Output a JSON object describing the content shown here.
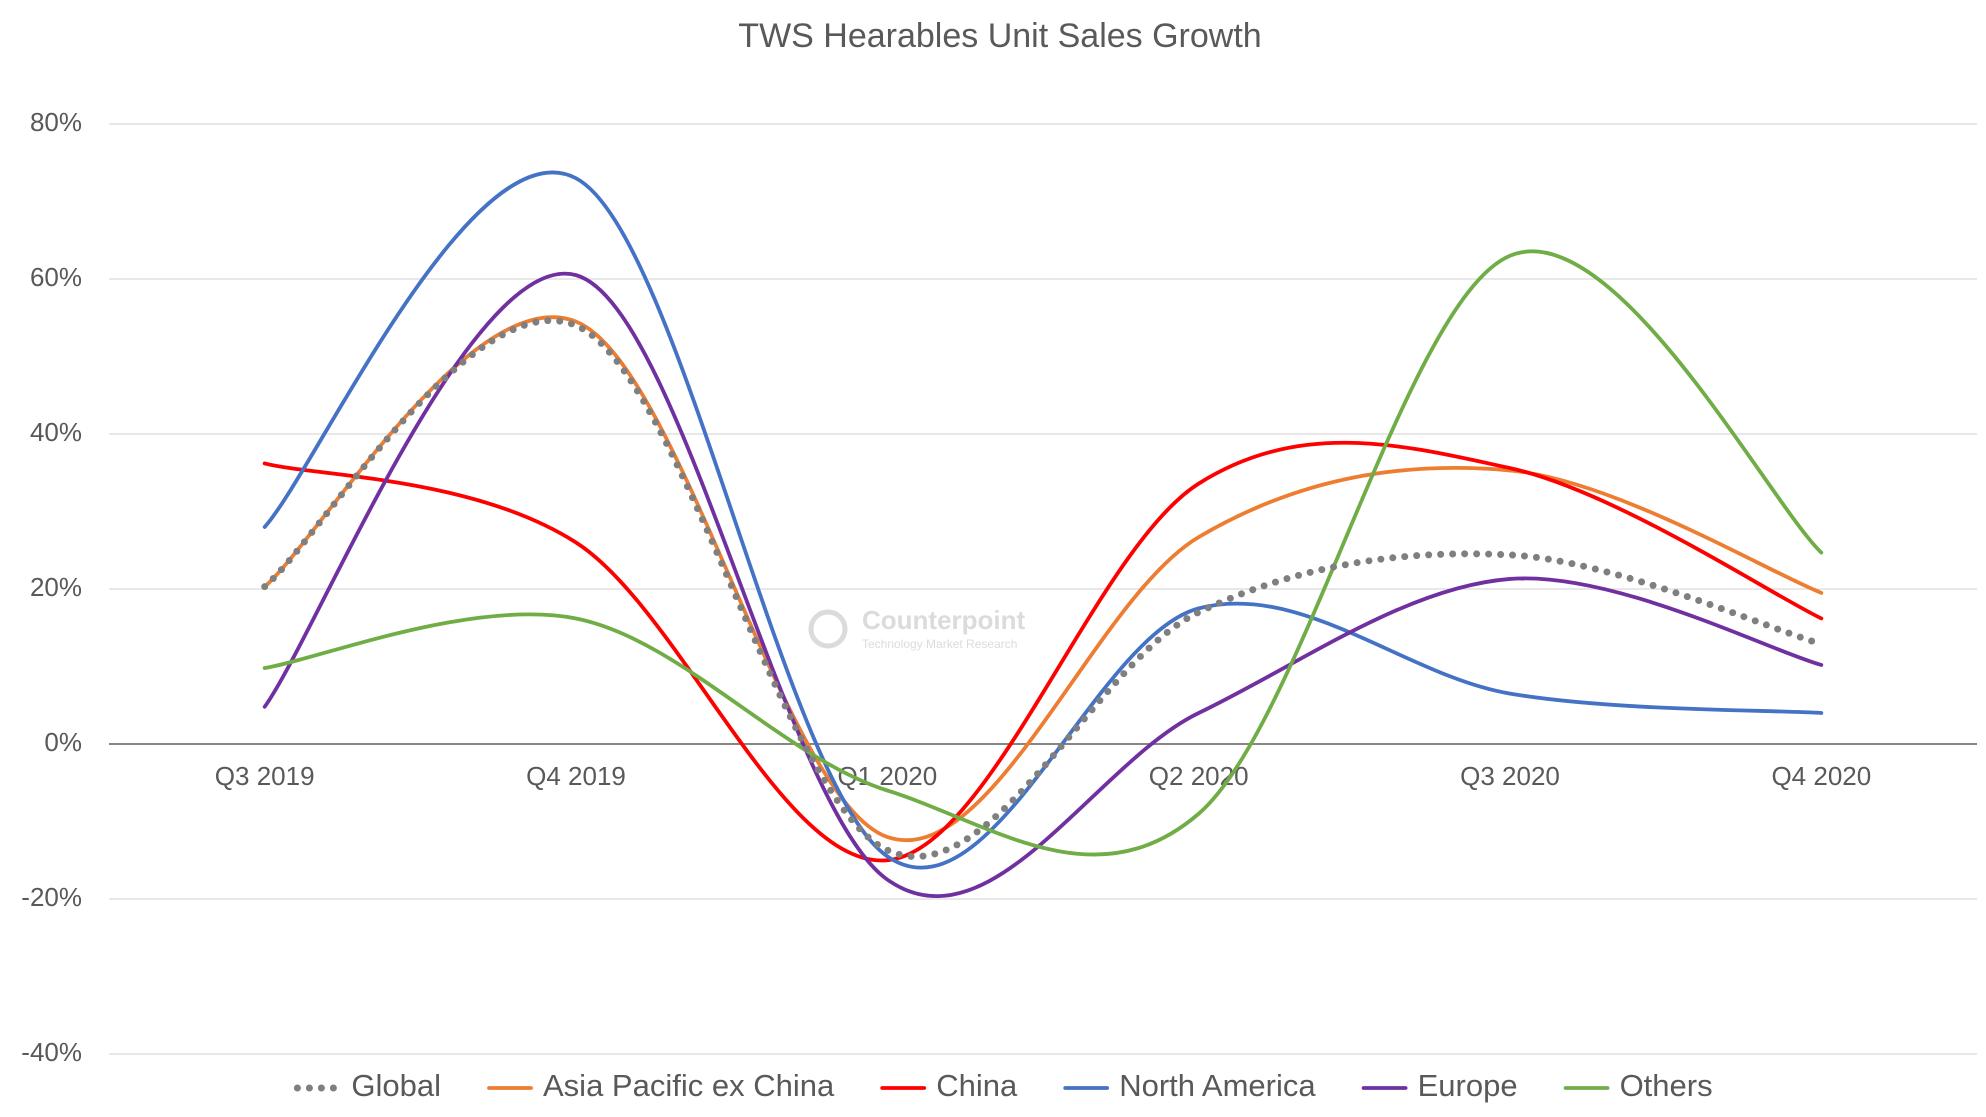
{
  "chart_data": {
    "type": "line",
    "title": "TWS Hearables Unit Sales Growth",
    "watermark": "Counterpoint",
    "watermark_subtitle": "Technology Market Research",
    "categories": [
      "Q3 2019",
      "Q4 2019",
      "Q1 2020",
      "Q2 2020",
      "Q3 2020",
      "Q4 2020"
    ],
    "series": [
      {
        "name": "Global",
        "color": "#7f7f7f",
        "dotted": true,
        "values": [
          20.3,
          54,
          -13.7,
          17,
          24.4,
          12.9
        ]
      },
      {
        "name": "Asia Pacific ex China",
        "color": "#ed7d31",
        "values": [
          20.3,
          54.5,
          -12,
          26.7,
          35.3,
          19.5
        ]
      },
      {
        "name": "China",
        "color": "#ff0000",
        "values": [
          36.2,
          26,
          -15,
          33.6,
          35.6,
          16.2
        ]
      },
      {
        "name": "North America",
        "color": "#4472c4",
        "values": [
          28,
          73,
          -14.5,
          17.5,
          6.5,
          4
        ]
      },
      {
        "name": "Europe",
        "color": "#7030a0",
        "values": [
          4.8,
          60.5,
          -17.5,
          4,
          21.3,
          10.2
        ]
      },
      {
        "name": "Others",
        "color": "#70ad47",
        "values": [
          9.8,
          16.2,
          -6,
          -9,
          63,
          24.7
        ]
      }
    ],
    "ylim": [
      -40,
      80
    ],
    "yticks": [
      {
        "value": -40,
        "label": "-40%"
      },
      {
        "value": -20,
        "label": "-20%"
      },
      {
        "value": 0,
        "label": "0%"
      },
      {
        "value": 20,
        "label": "20%"
      },
      {
        "value": 40,
        "label": "40%"
      },
      {
        "value": 60,
        "label": "60%"
      },
      {
        "value": 80,
        "label": "80%"
      }
    ],
    "grid": true,
    "smooth": true,
    "legend": "bottom"
  }
}
